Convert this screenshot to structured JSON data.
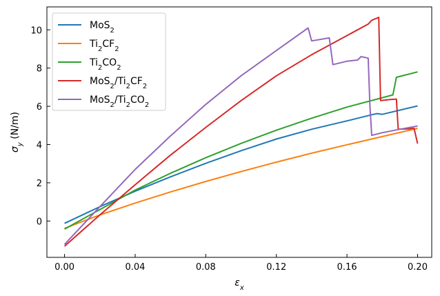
{
  "chart_data": {
    "type": "line",
    "title": "",
    "xlabel": "ε",
    "xlabel_sub": "x",
    "ylabel": "σ",
    "ylabel_sub": "y",
    "ylabel_unit": " (N/m)",
    "xlim": [
      -0.01,
      0.208
    ],
    "ylim": [
      -1.9,
      11.2
    ],
    "xticks": [
      0.0,
      0.04,
      0.08,
      0.12,
      0.16,
      0.2
    ],
    "xtick_labels": [
      "0.00",
      "0.04",
      "0.08",
      "0.12",
      "0.16",
      "0.20"
    ],
    "yticks": [
      0,
      2,
      4,
      6,
      8,
      10
    ],
    "ytick_labels": [
      "0",
      "2",
      "4",
      "6",
      "8",
      "10"
    ],
    "grid": false,
    "legend_position": "top-left",
    "series": [
      {
        "name": "MoS2",
        "legend_parts": [
          [
            "MoS",
            ""
          ],
          [
            "2",
            "sub"
          ]
        ],
        "color": "#1f77b4",
        "x": [
          0.0,
          0.02,
          0.04,
          0.06,
          0.08,
          0.1,
          0.12,
          0.14,
          0.16,
          0.175,
          0.177,
          0.18,
          0.2
        ],
        "y": [
          -0.12,
          0.75,
          1.56,
          2.31,
          3.02,
          3.68,
          4.29,
          4.8,
          5.24,
          5.58,
          5.62,
          5.58,
          6.02
        ]
      },
      {
        "name": "Ti2CF2",
        "legend_parts": [
          [
            "Ti",
            ""
          ],
          [
            "2",
            "sub"
          ],
          [
            "CF",
            ""
          ],
          [
            "2",
            "sub"
          ]
        ],
        "color": "#ff7f0e",
        "x": [
          0.0,
          0.02,
          0.04,
          0.06,
          0.08,
          0.1,
          0.12,
          0.14,
          0.16,
          0.18,
          0.2
        ],
        "y": [
          -0.38,
          0.32,
          0.94,
          1.52,
          2.07,
          2.59,
          3.08,
          3.55,
          3.99,
          4.42,
          4.85
        ]
      },
      {
        "name": "Ti2CO2",
        "legend_parts": [
          [
            "Ti",
            ""
          ],
          [
            "2",
            "sub"
          ],
          [
            "CO",
            ""
          ],
          [
            "2",
            "sub"
          ]
        ],
        "color": "#2ca02c",
        "x": [
          0.0,
          0.02,
          0.04,
          0.06,
          0.08,
          0.1,
          0.12,
          0.14,
          0.16,
          0.18,
          0.186,
          0.188,
          0.2
        ],
        "y": [
          -0.42,
          0.6,
          1.62,
          2.5,
          3.31,
          4.06,
          4.75,
          5.38,
          5.96,
          6.45,
          6.6,
          7.52,
          7.8
        ]
      },
      {
        "name": "MoS2/Ti2CF2",
        "legend_parts": [
          [
            "MoS",
            ""
          ],
          [
            "2",
            "sub"
          ],
          [
            "/Ti",
            ""
          ],
          [
            "2",
            "sub"
          ],
          [
            "CF",
            ""
          ],
          [
            "2",
            "sub"
          ]
        ],
        "color": "#d62728",
        "x": [
          0.0,
          0.02,
          0.04,
          0.06,
          0.08,
          0.1,
          0.12,
          0.14,
          0.16,
          0.172,
          0.174,
          0.178,
          0.179,
          0.184,
          0.188,
          0.189,
          0.195,
          0.198,
          0.2
        ],
        "y": [
          -1.32,
          0.32,
          1.9,
          3.45,
          4.9,
          6.3,
          7.6,
          8.7,
          9.7,
          10.3,
          10.5,
          10.65,
          6.3,
          6.35,
          6.38,
          4.8,
          4.82,
          4.85,
          4.05
        ]
      },
      {
        "name": "MoS2/Ti2CO2",
        "legend_parts": [
          [
            "MoS",
            ""
          ],
          [
            "2",
            "sub"
          ],
          [
            "/Ti",
            ""
          ],
          [
            "2",
            "sub"
          ],
          [
            "CO",
            ""
          ],
          [
            "2",
            "sub"
          ]
        ],
        "color": "#9467bd",
        "x": [
          0.0,
          0.02,
          0.04,
          0.06,
          0.08,
          0.1,
          0.12,
          0.138,
          0.14,
          0.15,
          0.152,
          0.16,
          0.166,
          0.168,
          0.172,
          0.173,
          0.174,
          0.18,
          0.19,
          0.2
        ],
        "y": [
          -1.22,
          0.75,
          2.7,
          4.45,
          6.1,
          7.6,
          8.92,
          10.1,
          9.42,
          9.58,
          8.18,
          8.36,
          8.42,
          8.6,
          8.52,
          6.0,
          4.48,
          4.62,
          4.8,
          4.97
        ]
      }
    ]
  }
}
